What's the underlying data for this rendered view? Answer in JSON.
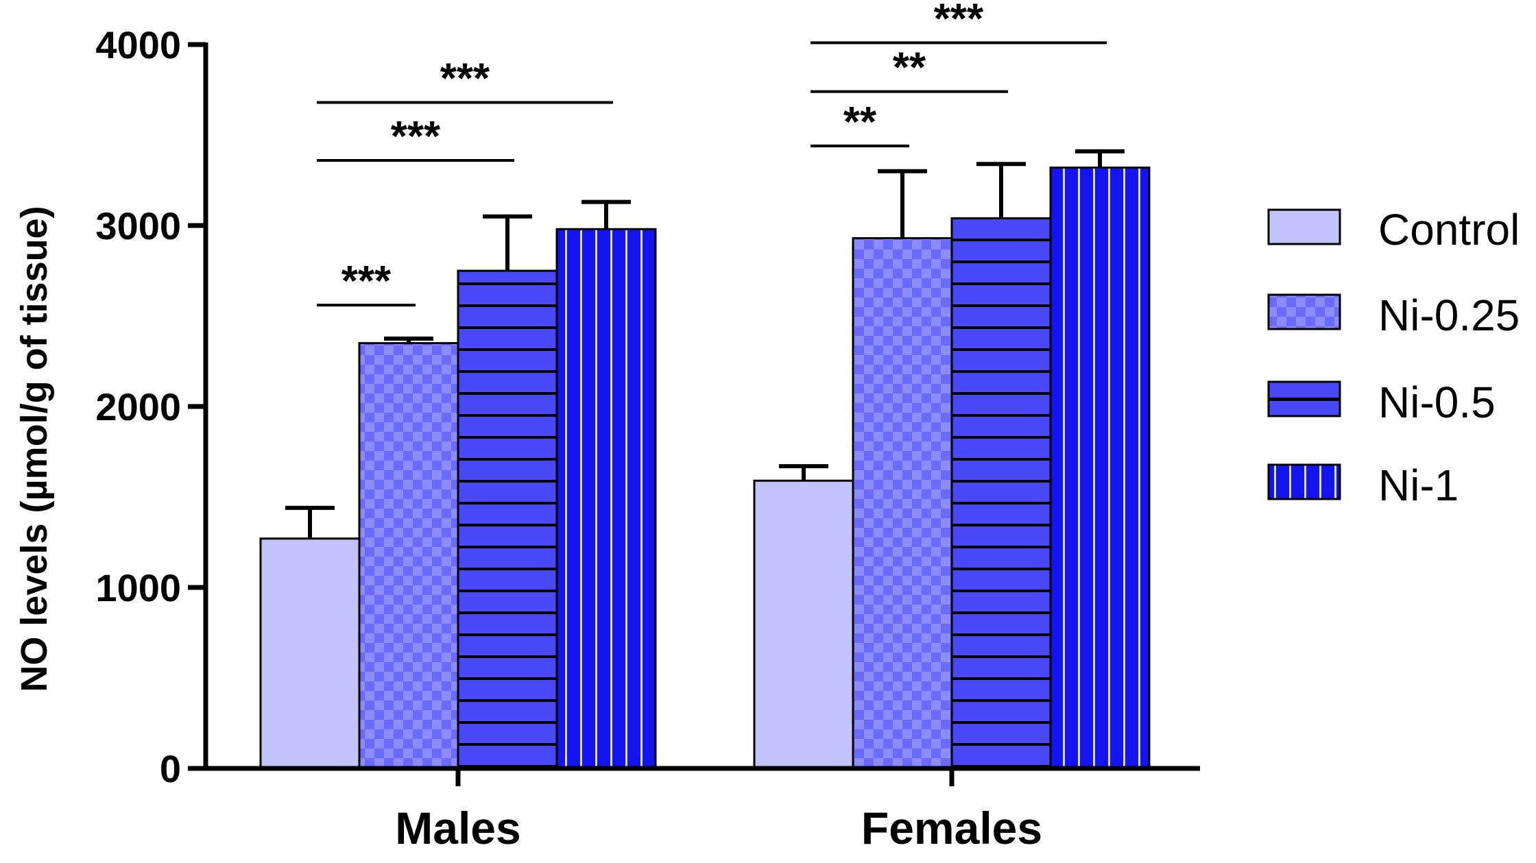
{
  "chart_data": {
    "type": "bar",
    "title": "",
    "xlabel": "",
    "ylabel": "NO levels (µmol/g of tissue)",
    "ylim": [
      0,
      4000
    ],
    "yticks": [
      "0",
      "1000",
      "2000",
      "3000",
      "4000"
    ],
    "categories": [
      "Males",
      "Females"
    ],
    "series": [
      {
        "name": "Control",
        "values": [
          1270,
          1590
        ],
        "errors": [
          170,
          80
        ],
        "color": "#c2c2fc",
        "pattern": "solid"
      },
      {
        "name": "Ni-0.25",
        "values": [
          2350,
          2930
        ],
        "errors": [
          25,
          370
        ],
        "color": "#6a6aff",
        "pattern": "checker"
      },
      {
        "name": "Ni-0.5",
        "values": [
          2750,
          3040
        ],
        "errors": [
          300,
          300
        ],
        "color": "#4848f8",
        "pattern": "horizontal-lines"
      },
      {
        "name": "Ni-1",
        "values": [
          2980,
          3320
        ],
        "errors": [
          150,
          90
        ],
        "color": "#1414f0",
        "pattern": "vertical-lines"
      }
    ],
    "significance": [
      {
        "category": "Males",
        "from": "Control",
        "to": "Ni-0.25",
        "level": 2560,
        "label": "***"
      },
      {
        "category": "Males",
        "from": "Control",
        "to": "Ni-0.5",
        "level": 3360,
        "label": "***"
      },
      {
        "category": "Males",
        "from": "Control",
        "to": "Ni-1",
        "level": 3680,
        "label": "***"
      },
      {
        "category": "Females",
        "from": "Control",
        "to": "Ni-0.25",
        "level": 3440,
        "label": "**"
      },
      {
        "category": "Females",
        "from": "Control",
        "to": "Ni-0.5",
        "level": 3740,
        "label": "**"
      },
      {
        "category": "Females",
        "from": "Control",
        "to": "Ni-1",
        "level": 4010,
        "label": "***"
      }
    ],
    "legend": {
      "position": "right",
      "entries": [
        "Control",
        "Ni-0.25",
        "Ni-0.5",
        "Ni-1"
      ]
    }
  }
}
